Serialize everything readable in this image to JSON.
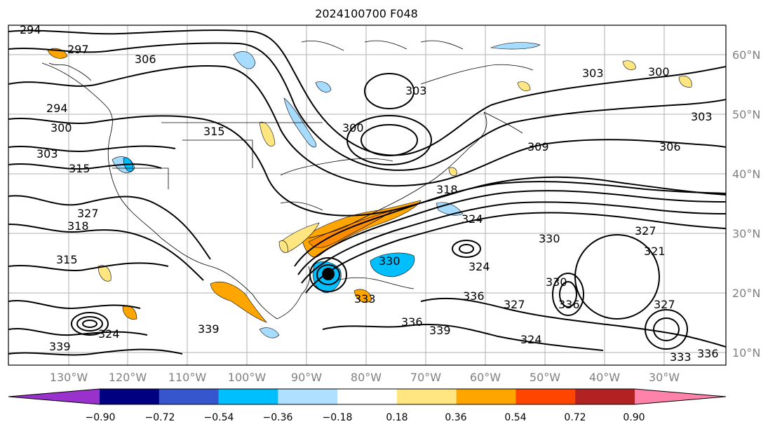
{
  "title": "2024100700 F048",
  "map": {
    "lon_labels": [
      "130°W",
      "120°W",
      "110°W",
      "100°W",
      "90°W",
      "80°W",
      "70°W",
      "60°W",
      "50°W",
      "40°W",
      "30°W"
    ],
    "lat_labels": [
      "60°N",
      "50°N",
      "40°N",
      "30°N",
      "20°N",
      "10°N"
    ],
    "contour_labels": [
      "294",
      "297",
      "306",
      "300",
      "294",
      "300",
      "303",
      "315",
      "315",
      "318",
      "327",
      "318",
      "315",
      "300",
      "303",
      "309",
      "306",
      "303",
      "300",
      "297",
      "324",
      "327",
      "330",
      "327",
      "321",
      "324",
      "318",
      "324",
      "327",
      "330",
      "336",
      "339",
      "336",
      "333",
      "339",
      "336",
      "327",
      "330",
      "333",
      "336",
      "324",
      "324",
      "336",
      "339",
      "327",
      "333",
      "303"
    ],
    "shading_colors": {
      "neg_strong": "#1e90ff",
      "neg_mid": "#00bfff",
      "neg_weak": "#a6dcff",
      "pos_weak": "#ffe680",
      "pos_mid": "#ffa500",
      "pos_strong": "#ff4500"
    }
  },
  "colorbar": {
    "ticks": [
      "−0.90",
      "−0.72",
      "−0.54",
      "−0.36",
      "−0.18",
      "0.18",
      "0.36",
      "0.54",
      "0.72",
      "0.90"
    ],
    "colors": [
      "#9932cc",
      "#000080",
      "#3556cc",
      "#00bfff",
      "#b0e0ff",
      "#ffffff",
      "#ffe680",
      "#ffa500",
      "#ff4500",
      "#b22222",
      "#ff82aa"
    ]
  }
}
